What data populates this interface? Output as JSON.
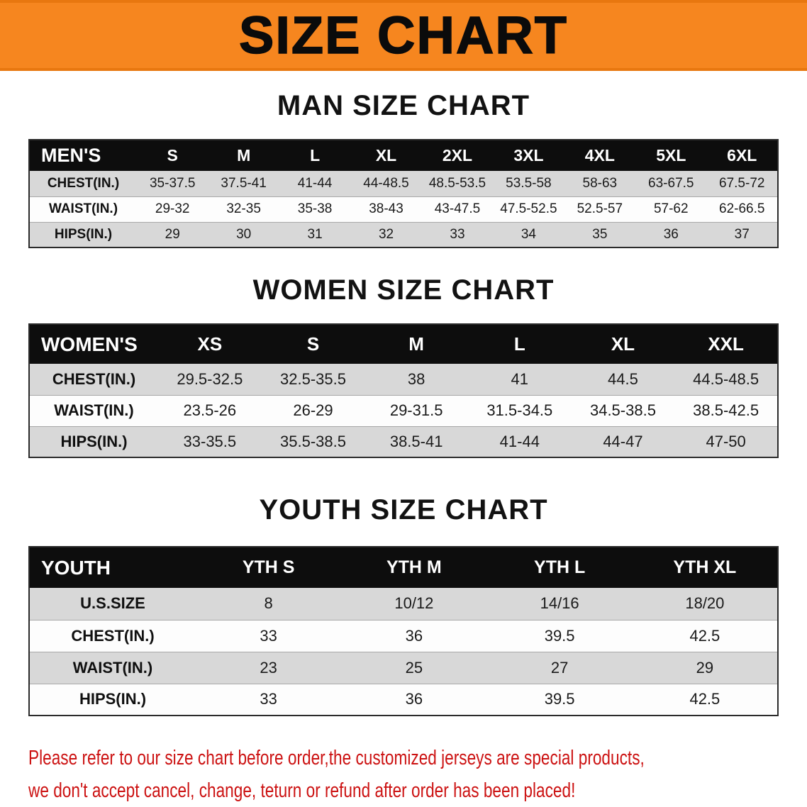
{
  "colors": {
    "banner_orange": "#f6861f",
    "table_header_black": "#0d0d0d",
    "stripe_gray": "#d8d8d8",
    "notice_red": "#cc1212"
  },
  "banner": {
    "title": "SIZE CHART"
  },
  "men": {
    "heading": "MAN SIZE CHART",
    "corner_label": "MEN'S",
    "cols": [
      "S",
      "M",
      "L",
      "XL",
      "2XL",
      "3XL",
      "4XL",
      "5XL",
      "6XL"
    ],
    "rows": [
      {
        "label": "CHEST(IN.)",
        "values": [
          "35-37.5",
          "37.5-41",
          "41-44",
          "44-48.5",
          "48.5-53.5",
          "53.5-58",
          "58-63",
          "63-67.5",
          "67.5-72"
        ]
      },
      {
        "label": "WAIST(IN.)",
        "values": [
          "29-32",
          "32-35",
          "35-38",
          "38-43",
          "43-47.5",
          "47.5-52.5",
          "52.5-57",
          "57-62",
          "62-66.5"
        ]
      },
      {
        "label": "HIPS(IN.)",
        "values": [
          "29",
          "30",
          "31",
          "32",
          "33",
          "34",
          "35",
          "36",
          "37"
        ]
      }
    ]
  },
  "women": {
    "heading": "WOMEN SIZE CHART",
    "corner_label": "WOMEN'S",
    "cols": [
      "XS",
      "S",
      "M",
      "L",
      "XL",
      "XXL"
    ],
    "rows": [
      {
        "label": "CHEST(IN.)",
        "values": [
          "29.5-32.5",
          "32.5-35.5",
          "38",
          "41",
          "44.5",
          "44.5-48.5"
        ]
      },
      {
        "label": "WAIST(IN.)",
        "values": [
          "23.5-26",
          "26-29",
          "29-31.5",
          "31.5-34.5",
          "34.5-38.5",
          "38.5-42.5"
        ]
      },
      {
        "label": "HIPS(IN.)",
        "values": [
          "33-35.5",
          "35.5-38.5",
          "38.5-41",
          "41-44",
          "44-47",
          "47-50"
        ]
      }
    ]
  },
  "youth": {
    "heading": "YOUTH SIZE CHART",
    "corner_label": "YOUTH",
    "cols": [
      "YTH S",
      "YTH M",
      "YTH L",
      "YTH XL"
    ],
    "rows": [
      {
        "label": "U.S.SIZE",
        "values": [
          "8",
          "10/12",
          "14/16",
          "18/20"
        ]
      },
      {
        "label": "CHEST(IN.)",
        "values": [
          "33",
          "36",
          "39.5",
          "42.5"
        ]
      },
      {
        "label": "WAIST(IN.)",
        "values": [
          "23",
          "25",
          "27",
          "29"
        ]
      },
      {
        "label": "HIPS(IN.)",
        "values": [
          "33",
          "36",
          "39.5",
          "42.5"
        ]
      }
    ]
  },
  "notice": {
    "line1": "Please refer to our size chart before order,the customized jerseys are special products,",
    "line2": "we don't accept cancel, change, teturn or refund after order has been placed!"
  }
}
